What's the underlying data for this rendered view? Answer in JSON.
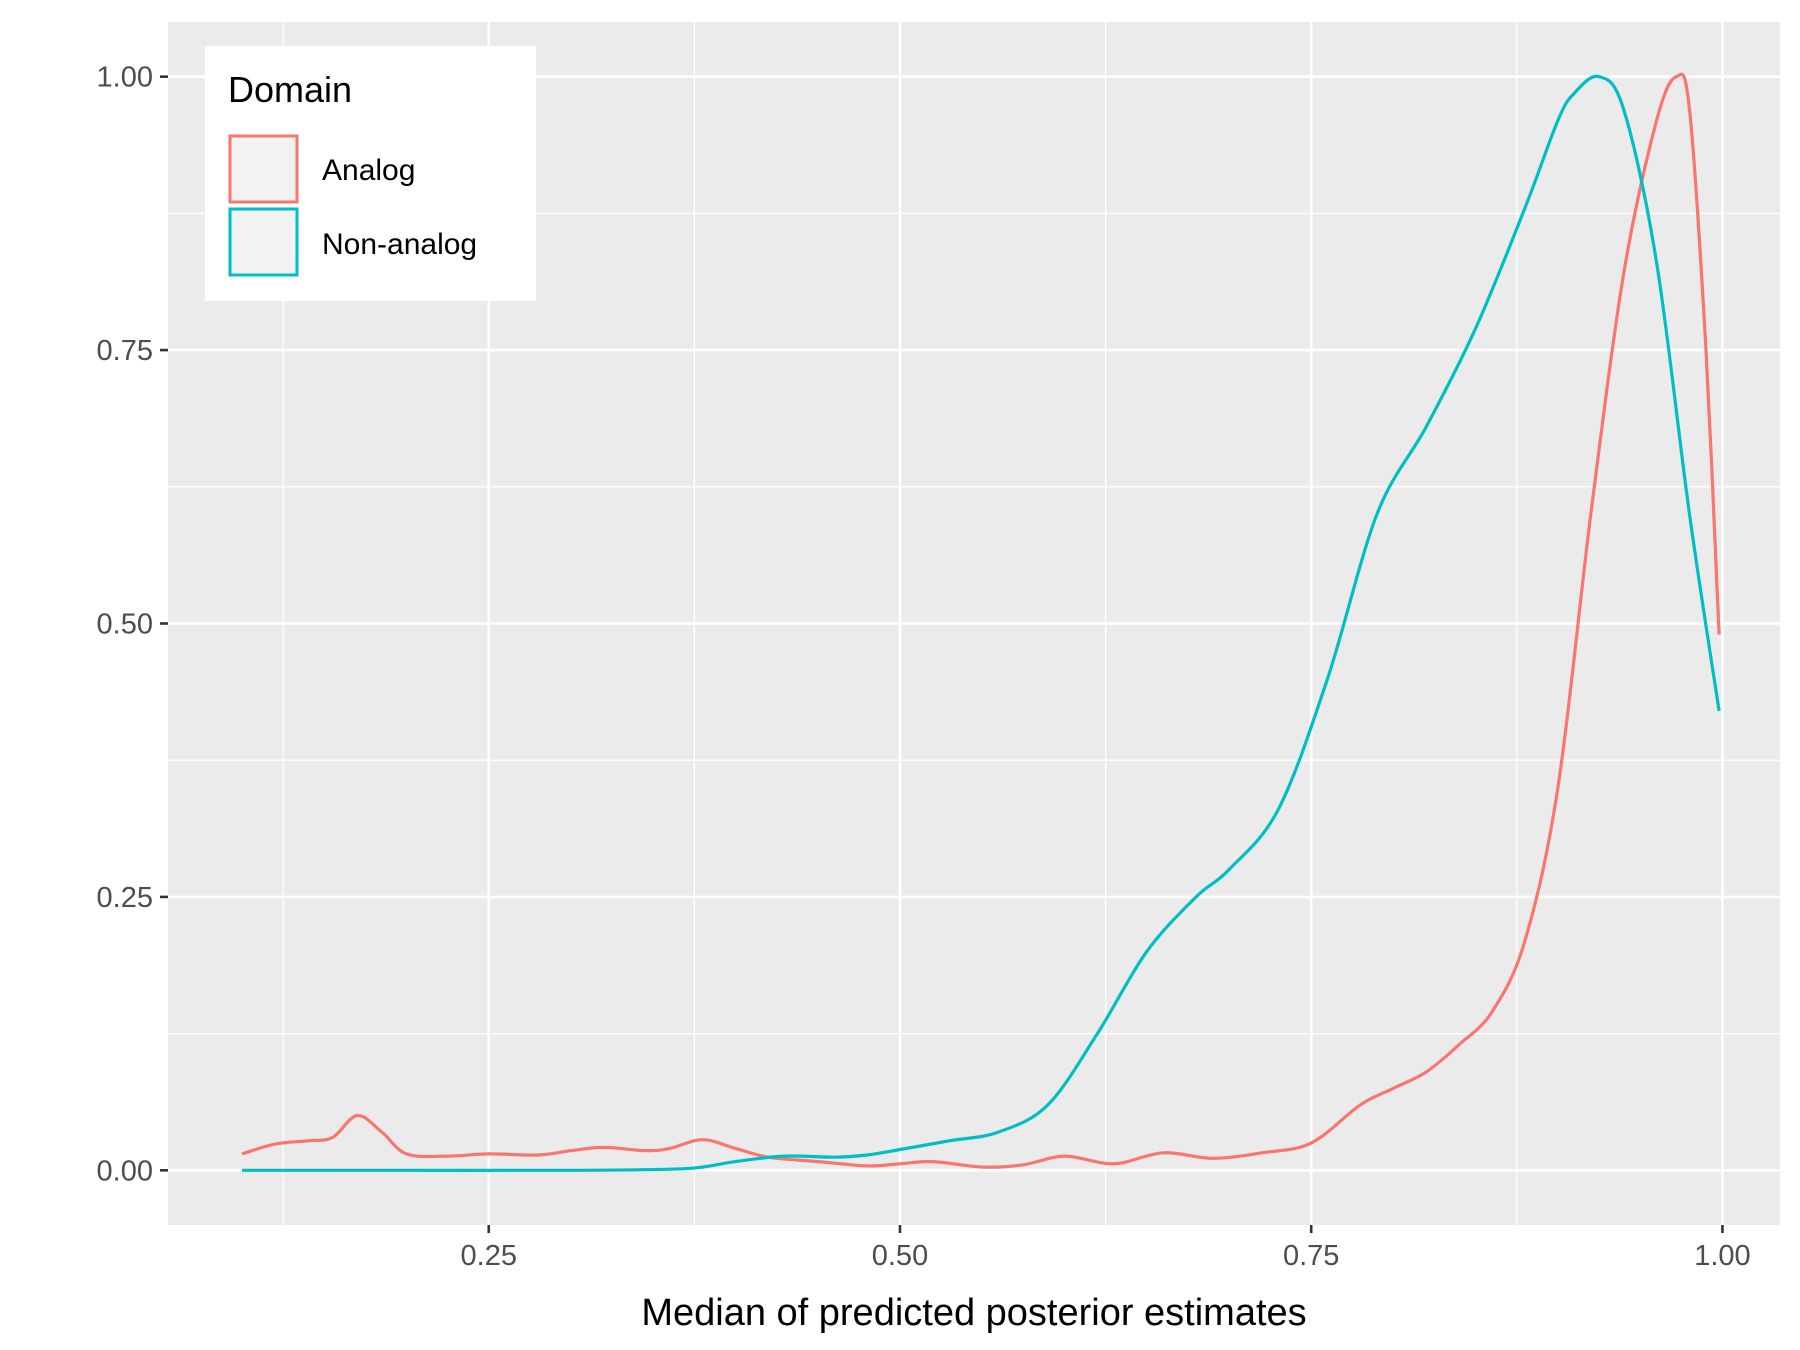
{
  "chart_data": {
    "type": "line",
    "title": "",
    "xlabel": "Median of predicted posterior estimates",
    "ylabel": "",
    "xlim": [
      0.055,
      1.035
    ],
    "ylim": [
      -0.05,
      1.05
    ],
    "x_ticks": [
      0.25,
      0.5,
      0.75,
      1.0
    ],
    "x_tick_labels": [
      "0.25",
      "0.50",
      "0.75",
      "1.00"
    ],
    "y_ticks": [
      0.0,
      0.25,
      0.5,
      0.75,
      1.0
    ],
    "y_tick_labels": [
      "0.00",
      "0.25",
      "0.50",
      "0.75",
      "1.00"
    ],
    "grid": true,
    "legend": {
      "title": "Domain",
      "position": "top-left, inside plot"
    },
    "series": [
      {
        "name": "Analog",
        "color": "#F8766D",
        "x": [
          0.1,
          0.12,
          0.14,
          0.155,
          0.17,
          0.185,
          0.2,
          0.225,
          0.25,
          0.28,
          0.3,
          0.32,
          0.345,
          0.36,
          0.38,
          0.4,
          0.42,
          0.45,
          0.48,
          0.5,
          0.52,
          0.55,
          0.575,
          0.6,
          0.63,
          0.66,
          0.69,
          0.72,
          0.75,
          0.78,
          0.8,
          0.82,
          0.84,
          0.86,
          0.88,
          0.9,
          0.92,
          0.94,
          0.96,
          0.972,
          0.98,
          0.99,
          0.998
        ],
        "y": [
          0.015,
          0.024,
          0.027,
          0.03,
          0.05,
          0.035,
          0.015,
          0.013,
          0.015,
          0.014,
          0.018,
          0.021,
          0.018,
          0.02,
          0.028,
          0.02,
          0.012,
          0.008,
          0.004,
          0.006,
          0.008,
          0.003,
          0.005,
          0.013,
          0.006,
          0.016,
          0.011,
          0.016,
          0.025,
          0.06,
          0.075,
          0.09,
          0.115,
          0.145,
          0.21,
          0.35,
          0.6,
          0.82,
          0.96,
          1.0,
          0.97,
          0.75,
          0.49
        ]
      },
      {
        "name": "Non-analog",
        "color": "#00BFC4",
        "x": [
          0.1,
          0.2,
          0.3,
          0.36,
          0.38,
          0.4,
          0.43,
          0.46,
          0.48,
          0.5,
          0.53,
          0.56,
          0.59,
          0.62,
          0.65,
          0.68,
          0.7,
          0.73,
          0.76,
          0.79,
          0.82,
          0.85,
          0.88,
          0.9,
          0.91,
          0.925,
          0.94,
          0.96,
          0.98,
          0.998
        ],
        "y": [
          0.0,
          0.0,
          0.0,
          0.001,
          0.003,
          0.008,
          0.013,
          0.012,
          0.014,
          0.019,
          0.027,
          0.035,
          0.06,
          0.125,
          0.2,
          0.25,
          0.275,
          0.33,
          0.45,
          0.6,
          0.68,
          0.77,
          0.88,
          0.96,
          0.985,
          1.0,
          0.97,
          0.83,
          0.6,
          0.42
        ]
      }
    ]
  }
}
